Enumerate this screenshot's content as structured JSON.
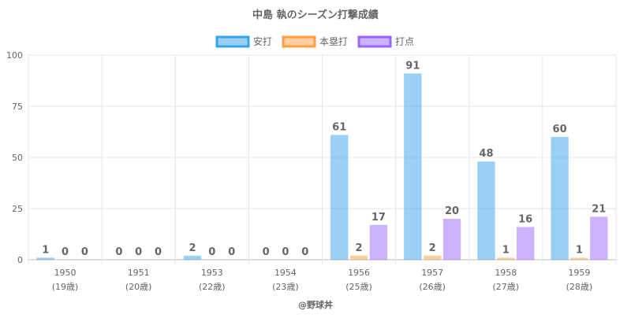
{
  "chart_data": {
    "type": "bar",
    "title": "中島 執のシーズン打撃成績",
    "categories": [
      "1950",
      "1951",
      "1953",
      "1954",
      "1956",
      "1957",
      "1958",
      "1959"
    ],
    "category_sublabels": [
      "(19歳)",
      "(20歳)",
      "(22歳)",
      "(23歳)",
      "(25歳)",
      "(26歳)",
      "(27歳)",
      "(28歳)"
    ],
    "series": [
      {
        "name": "安打",
        "values": [
          1,
          0,
          2,
          0,
          61,
          91,
          48,
          60
        ],
        "color": "#36a2eb"
      },
      {
        "name": "本塁打",
        "values": [
          0,
          0,
          0,
          0,
          2,
          2,
          1,
          1
        ],
        "color": "#ff9f40"
      },
      {
        "name": "打点",
        "values": [
          0,
          0,
          0,
          0,
          17,
          20,
          16,
          21
        ],
        "color": "#9966ff"
      }
    ],
    "ylim": [
      0,
      100
    ],
    "yticks": [
      0,
      25,
      50,
      75,
      100
    ],
    "grid": true,
    "legend_position": "top",
    "data_labels": true,
    "footer": "@野球丼"
  }
}
